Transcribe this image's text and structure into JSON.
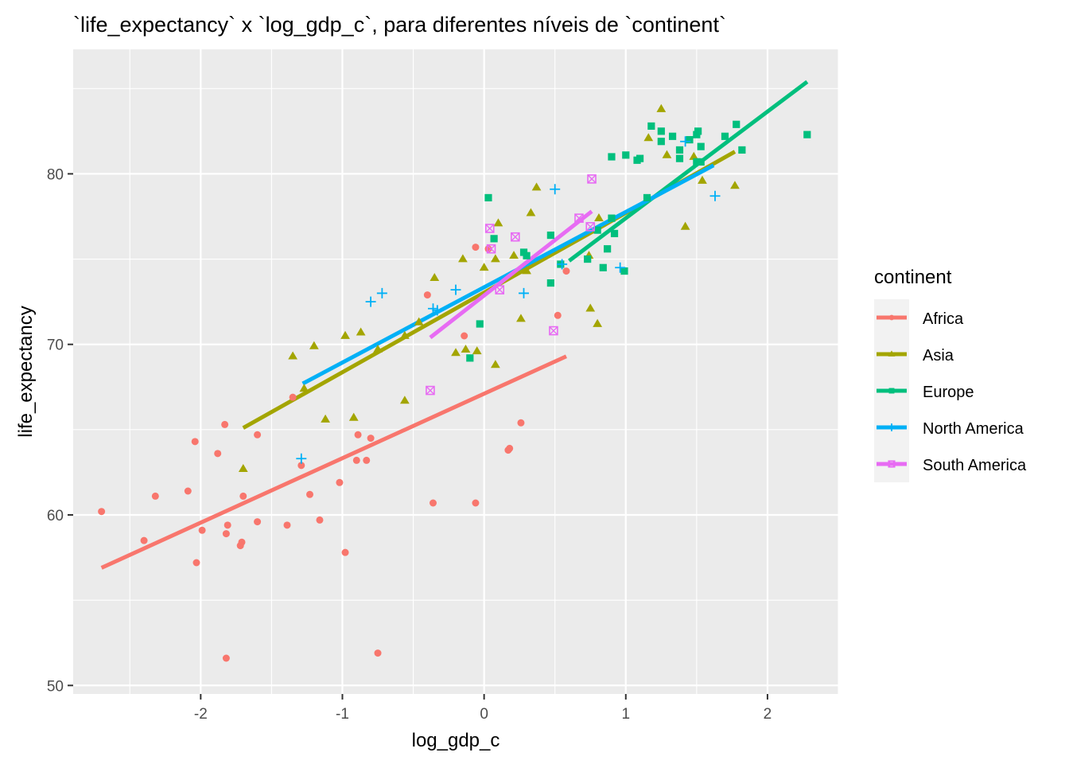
{
  "chart_data": {
    "type": "scatter",
    "title": "`life_expectancy` x `log_gdp_c`, para diferentes níveis de `continent`",
    "xlabel": "log_gdp_c",
    "ylabel": "life_expectancy",
    "xlim": [
      -2.9,
      2.5
    ],
    "ylim": [
      49.5,
      87.3
    ],
    "x_ticks": [
      -2,
      -1,
      0,
      1,
      2
    ],
    "x_tick_labels": [
      "-2",
      "-1",
      "0",
      "1",
      "2"
    ],
    "y_ticks": [
      50,
      60,
      70,
      80
    ],
    "y_tick_labels": [
      "50",
      "60",
      "70",
      "80"
    ],
    "grid": true,
    "legend": {
      "title": "continent",
      "position": "right"
    },
    "series": [
      {
        "name": "Africa",
        "color": "#F8766D",
        "marker": "circle",
        "fit": [
          [
            -2.7,
            56.9
          ],
          [
            0.58,
            69.3
          ]
        ],
        "points": [
          [
            -2.7,
            60.2
          ],
          [
            -2.4,
            58.5
          ],
          [
            -2.32,
            61.1
          ],
          [
            -2.09,
            61.4
          ],
          [
            -2.04,
            64.3
          ],
          [
            -2.03,
            57.2
          ],
          [
            -1.99,
            59.1
          ],
          [
            -1.88,
            63.6
          ],
          [
            -1.83,
            65.3
          ],
          [
            -1.82,
            58.9
          ],
          [
            -1.81,
            59.4
          ],
          [
            -1.72,
            58.2
          ],
          [
            -1.71,
            58.4
          ],
          [
            -1.7,
            61.1
          ],
          [
            -1.6,
            64.7
          ],
          [
            -1.6,
            59.6
          ],
          [
            -1.39,
            59.4
          ],
          [
            -1.35,
            66.9
          ],
          [
            -1.29,
            62.9
          ],
          [
            -1.23,
            61.2
          ],
          [
            -1.16,
            59.7
          ],
          [
            -1.02,
            61.9
          ],
          [
            -0.98,
            57.8
          ],
          [
            -0.9,
            63.2
          ],
          [
            -0.89,
            64.7
          ],
          [
            -0.83,
            63.2
          ],
          [
            -0.8,
            64.5
          ],
          [
            -0.75,
            51.9
          ],
          [
            -1.82,
            51.6
          ],
          [
            -0.4,
            72.9
          ],
          [
            -0.36,
            60.7
          ],
          [
            -0.14,
            70.5
          ],
          [
            -0.06,
            60.7
          ],
          [
            -0.06,
            75.7
          ],
          [
            0.03,
            75.6
          ],
          [
            0.17,
            63.8
          ],
          [
            0.18,
            63.9
          ],
          [
            0.26,
            65.4
          ],
          [
            0.52,
            71.7
          ],
          [
            0.58,
            74.3
          ]
        ]
      },
      {
        "name": "Asia",
        "color": "#A3A500",
        "marker": "triangle",
        "fit": [
          [
            -1.7,
            65.1
          ],
          [
            1.77,
            81.3
          ]
        ],
        "points": [
          [
            -1.7,
            62.7
          ],
          [
            -1.35,
            69.3
          ],
          [
            -1.27,
            67.4
          ],
          [
            -1.2,
            69.9
          ],
          [
            -1.12,
            65.6
          ],
          [
            -0.98,
            70.5
          ],
          [
            -0.92,
            65.7
          ],
          [
            -0.87,
            70.7
          ],
          [
            -0.75,
            69.7
          ],
          [
            -0.56,
            66.7
          ],
          [
            -0.56,
            70.5
          ],
          [
            -0.46,
            71.3
          ],
          [
            -0.35,
            73.9
          ],
          [
            -0.2,
            69.5
          ],
          [
            -0.15,
            75
          ],
          [
            -0.13,
            69.7
          ],
          [
            -0.05,
            69.6
          ],
          [
            0,
            74.5
          ],
          [
            0.08,
            75
          ],
          [
            0.08,
            68.8
          ],
          [
            0.1,
            77.1
          ],
          [
            0.21,
            75.2
          ],
          [
            0.26,
            71.5
          ],
          [
            0.3,
            74.3
          ],
          [
            0.33,
            77.7
          ],
          [
            0.37,
            79.2
          ],
          [
            0.74,
            75.2
          ],
          [
            0.75,
            72.1
          ],
          [
            0.8,
            71.2
          ],
          [
            0.81,
            77.4
          ],
          [
            1.16,
            82.1
          ],
          [
            1.25,
            83.8
          ],
          [
            1.29,
            81.1
          ],
          [
            1.42,
            76.9
          ],
          [
            1.48,
            81
          ],
          [
            1.54,
            79.6
          ],
          [
            1.77,
            79.3
          ]
        ]
      },
      {
        "name": "Europe",
        "color": "#00BF7D",
        "marker": "square",
        "fit": [
          [
            0.6,
            74.9
          ],
          [
            2.28,
            85.4
          ]
        ],
        "points": [
          [
            0.03,
            78.6
          ],
          [
            0.07,
            76.2
          ],
          [
            -0.03,
            71.2
          ],
          [
            -0.1,
            69.2
          ],
          [
            0.28,
            75.4
          ],
          [
            0.3,
            75.2
          ],
          [
            0.47,
            76.4
          ],
          [
            0.47,
            73.6
          ],
          [
            0.54,
            74.7
          ],
          [
            0.73,
            75
          ],
          [
            0.8,
            76.7
          ],
          [
            0.84,
            74.5
          ],
          [
            0.87,
            75.6
          ],
          [
            0.9,
            77.4
          ],
          [
            0.9,
            81
          ],
          [
            0.92,
            76.5
          ],
          [
            0.99,
            74.3
          ],
          [
            1,
            81.1
          ],
          [
            1.08,
            80.8
          ],
          [
            1.1,
            80.9
          ],
          [
            1.15,
            78.6
          ],
          [
            1.18,
            82.8
          ],
          [
            1.25,
            82.5
          ],
          [
            1.25,
            81.9
          ],
          [
            1.33,
            82.2
          ],
          [
            1.38,
            81.4
          ],
          [
            1.38,
            80.9
          ],
          [
            1.45,
            82
          ],
          [
            1.5,
            80.7
          ],
          [
            1.5,
            82.3
          ],
          [
            1.51,
            82.5
          ],
          [
            1.53,
            80.7
          ],
          [
            1.53,
            81.6
          ],
          [
            1.7,
            82.2
          ],
          [
            1.78,
            82.9
          ],
          [
            1.82,
            81.4
          ],
          [
            2.28,
            82.3
          ]
        ]
      },
      {
        "name": "North America",
        "color": "#00B0F6",
        "marker": "plus",
        "fit": [
          [
            -1.28,
            67.7
          ],
          [
            1.62,
            80.5
          ]
        ],
        "points": [
          [
            -1.29,
            63.3
          ],
          [
            -0.8,
            72.5
          ],
          [
            -0.72,
            73
          ],
          [
            -0.36,
            72.1
          ],
          [
            -0.33,
            72
          ],
          [
            -0.2,
            73.2
          ],
          [
            0.28,
            73
          ],
          [
            0.5,
            79.1
          ],
          [
            0.55,
            74.7
          ],
          [
            0.96,
            74.5
          ],
          [
            1.42,
            81.9
          ],
          [
            1.63,
            78.7
          ]
        ]
      },
      {
        "name": "South America",
        "color": "#E76BF3",
        "marker": "boxx",
        "fit": [
          [
            -0.38,
            70.4
          ],
          [
            0.76,
            77.8
          ]
        ],
        "points": [
          [
            -0.38,
            67.3
          ],
          [
            0.04,
            76.8
          ],
          [
            0.05,
            75.6
          ],
          [
            0.11,
            73.2
          ],
          [
            0.22,
            76.3
          ],
          [
            0.49,
            70.8
          ],
          [
            0.67,
            77.4
          ],
          [
            0.75,
            76.9
          ],
          [
            0.76,
            79.7
          ]
        ]
      }
    ]
  }
}
